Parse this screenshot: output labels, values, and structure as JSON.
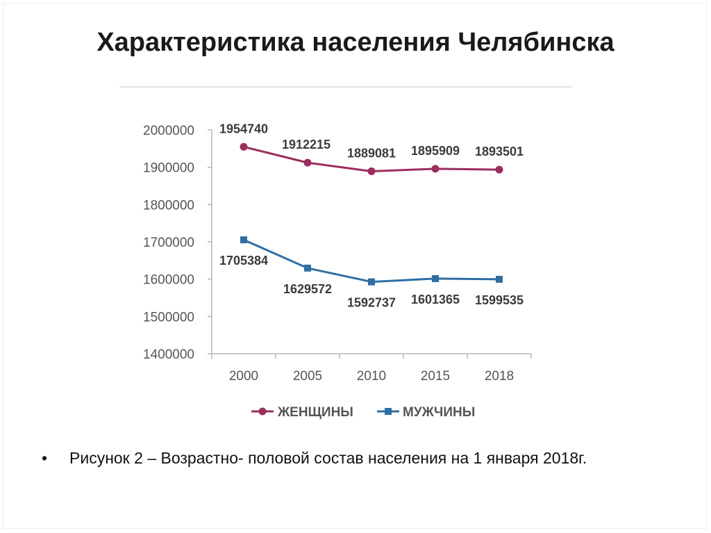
{
  "slide": {
    "title": "Характеристика населения Челябинска",
    "caption": "Рисунок 2 – Возрастно- половой состав населения на 1 января 2018г."
  },
  "chart_data": {
    "type": "line",
    "title": "",
    "xlabel": "",
    "ylabel": "",
    "categories": [
      "2000",
      "2005",
      "2010",
      "2015",
      "2018"
    ],
    "yticks": [
      "1400000",
      "1500000",
      "1600000",
      "1700000",
      "1800000",
      "1900000",
      "2000000"
    ],
    "ylim": [
      1400000,
      2000000
    ],
    "grid": false,
    "legend_position": "bottom",
    "series": [
      {
        "name": "ЖЕНЩИНЫ",
        "color": "#9b2d5f",
        "marker": "circle",
        "values": [
          1954740,
          1912215,
          1889081,
          1895909,
          1893501
        ],
        "labels": [
          "1954740",
          "1912215",
          "1889081",
          "1895909",
          "1893501"
        ]
      },
      {
        "name": "МУЖЧИНЫ",
        "color": "#2f6ea3",
        "marker": "square",
        "values": [
          1705384,
          1629572,
          1592737,
          1601365,
          1599535
        ],
        "labels": [
          "1705384",
          "1629572",
          "1592737",
          "1601365",
          "1599535"
        ]
      }
    ]
  }
}
